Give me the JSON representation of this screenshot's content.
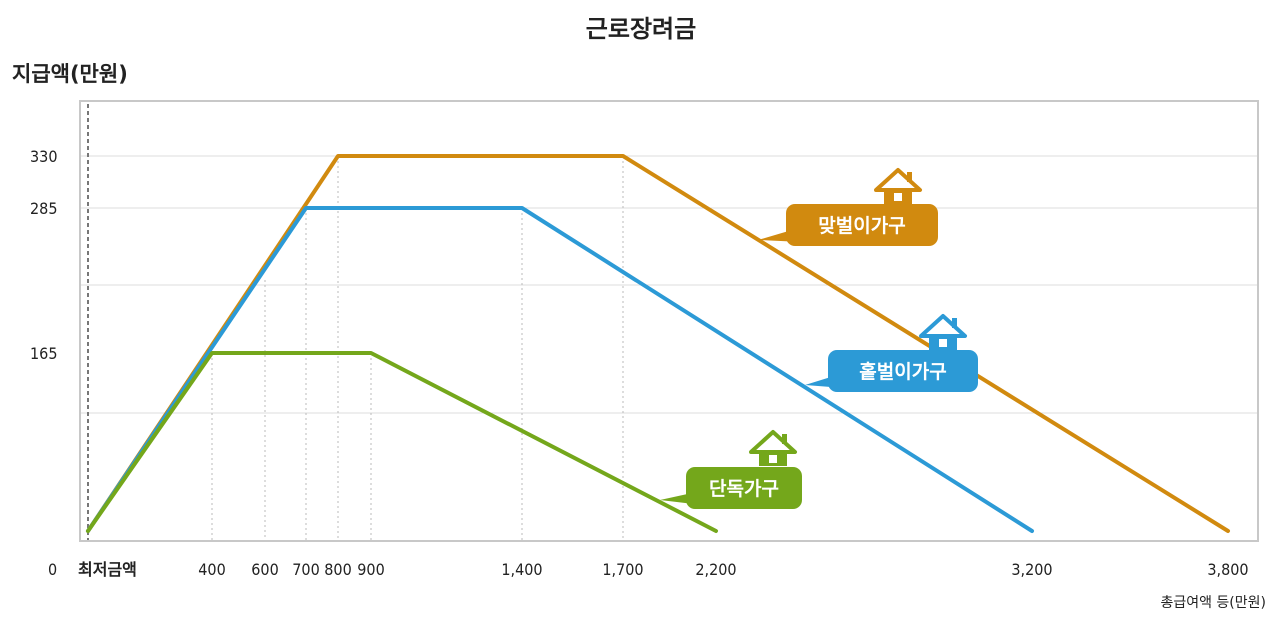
{
  "chart_data": {
    "type": "line",
    "title": "근로장려금",
    "ylabel": "지급액(만원)",
    "xlabel": "총급여액 등(만원)",
    "y_ticks": [
      0,
      165,
      285,
      330
    ],
    "x_ticks": [
      {
        "value": 0,
        "label": "최저금액"
      },
      {
        "value": 400,
        "label": "400"
      },
      {
        "value": 600,
        "label": "600"
      },
      {
        "value": 700,
        "label": "700"
      },
      {
        "value": 800,
        "label": "800"
      },
      {
        "value": 900,
        "label": "900"
      },
      {
        "value": 1400,
        "label": "1,400"
      },
      {
        "value": 1700,
        "label": "1,700"
      },
      {
        "value": 2200,
        "label": "2,200"
      },
      {
        "value": 3200,
        "label": "3,200"
      },
      {
        "value": 3800,
        "label": "3,800"
      }
    ],
    "origin_label": "0",
    "series": [
      {
        "name": "맞벌이가구",
        "color": "#d18a0f",
        "icon": "house-icon",
        "points": [
          [
            0,
            0
          ],
          [
            800,
            330
          ],
          [
            1700,
            330
          ],
          [
            3800,
            0
          ]
        ]
      },
      {
        "name": "홑벌이가구",
        "color": "#2c9ad6",
        "icon": "house-icon",
        "points": [
          [
            0,
            0
          ],
          [
            700,
            285
          ],
          [
            1400,
            285
          ],
          [
            3200,
            0
          ]
        ]
      },
      {
        "name": "단독가구",
        "color": "#74a71b",
        "icon": "house-icon",
        "points": [
          [
            0,
            0
          ],
          [
            400,
            165
          ],
          [
            900,
            165
          ],
          [
            2200,
            0
          ]
        ]
      }
    ],
    "grid": true,
    "legend": "inline labels on lines"
  }
}
